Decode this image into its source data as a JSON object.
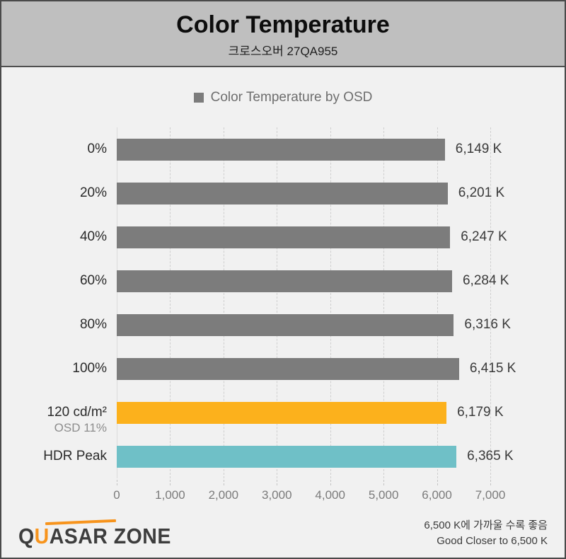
{
  "header": {
    "title": "Color Temperature",
    "subtitle": "크로스오버 27QA955"
  },
  "legend": {
    "label": "Color Temperature by OSD",
    "swatch_color": "#7c7c7c"
  },
  "chart_data": {
    "type": "bar",
    "orientation": "horizontal",
    "title": "Color Temperature",
    "subtitle": "크로스오버 27QA955",
    "legend_position": "top",
    "legend_entries": [
      "Color Temperature by OSD"
    ],
    "categories": [
      "0%",
      "20%",
      "40%",
      "60%",
      "80%",
      "100%",
      "120 cd/m²",
      "HDR Peak"
    ],
    "category_sublabels": [
      "",
      "",
      "",
      "",
      "",
      "",
      "OSD 11%",
      ""
    ],
    "values": [
      6149,
      6201,
      6247,
      6284,
      6316,
      6415,
      6179,
      6365
    ],
    "value_labels": [
      "6,149 K",
      "6,201 K",
      "6,247 K",
      "6,284 K",
      "6,316 K",
      "6,415 K",
      "6,179 K",
      "6,365 K"
    ],
    "bar_colors": [
      "#7c7c7c",
      "#7c7c7c",
      "#7c7c7c",
      "#7c7c7c",
      "#7c7c7c",
      "#7c7c7c",
      "#fcb11c",
      "#6fc0c7"
    ],
    "xlabel": "",
    "ylabel": "",
    "xlim": [
      0,
      7000
    ],
    "x_tick_values": [
      0,
      1000,
      2000,
      3000,
      4000,
      5000,
      6000,
      7000
    ],
    "x_tick_labels": [
      "0",
      "1,000",
      "2,000",
      "3,000",
      "4,000",
      "5,000",
      "6,000",
      "7,000"
    ],
    "grid": "vertical-dashed"
  },
  "footer": {
    "logo": {
      "part_q": "Q",
      "part_u": "U",
      "part_rest": "ASAR ZONE"
    },
    "note_ko": "6,500 K에 가까울 수록 좋음",
    "note_en": "Good Closer to 6,500 K"
  },
  "colors": {
    "page_background": "#f1f1f1",
    "header_background": "#bfbfbf",
    "border": "#4a4a4a",
    "bar_gray": "#7c7c7c",
    "bar_orange": "#fcb11c",
    "bar_teal": "#6fc0c7",
    "gridline": "#cfcfcf",
    "logo_orange": "#f7941d"
  }
}
